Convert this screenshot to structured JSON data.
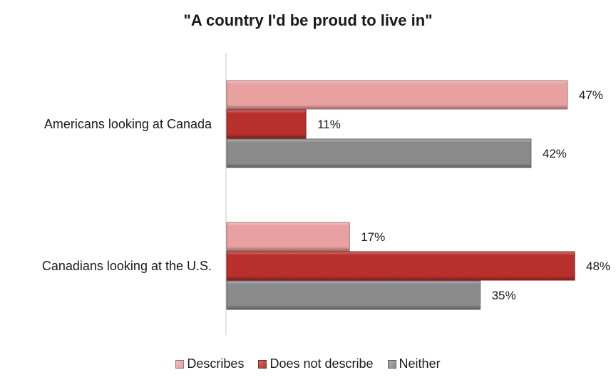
{
  "chart_data": {
    "type": "bar",
    "orientation": "horizontal",
    "title": "\"A country I'd be proud to live in\"",
    "categories": [
      "Americans looking at Canada",
      "Canadians looking at the U.S."
    ],
    "series": [
      {
        "name": "Describes",
        "values": [
          47,
          17
        ],
        "color": "#e8a0a0"
      },
      {
        "name": "Does not describe",
        "values": [
          11,
          48
        ],
        "color": "#b8302c"
      },
      {
        "name": "Neither",
        "values": [
          42,
          35
        ],
        "color": "#8a8a8a"
      }
    ],
    "value_labels": [
      [
        "47%",
        "17%"
      ],
      [
        "11%",
        "48%"
      ],
      [
        "42%",
        "35%"
      ]
    ],
    "xlim": [
      0,
      48
    ],
    "grid": false,
    "legend_position": "bottom"
  }
}
